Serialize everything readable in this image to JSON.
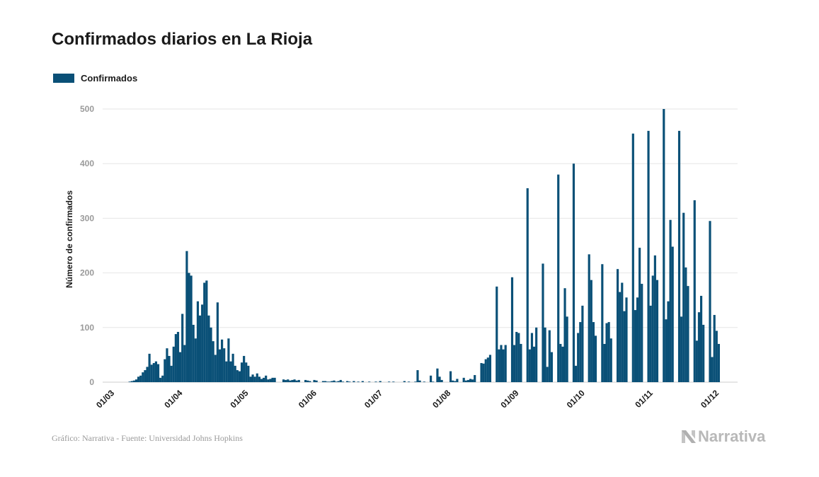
{
  "chart_data": {
    "type": "bar",
    "title": "Confirmados diarios en La Rioja",
    "ylabel": "Número de confirmados",
    "xlabel": "",
    "ylim": [
      0,
      500
    ],
    "yticks": [
      0,
      100,
      200,
      300,
      400,
      500
    ],
    "x_start": "2020-02-29",
    "x_end": "2020-11-30",
    "xticks": [
      "01/03",
      "01/04",
      "01/05",
      "01/06",
      "01/07",
      "01/08",
      "01/09",
      "01/10",
      "01/11",
      "01/12"
    ],
    "xtick_dates": [
      "2020-03-01",
      "2020-04-01",
      "2020-05-01",
      "2020-06-01",
      "2020-07-01",
      "2020-08-01",
      "2020-09-01",
      "2020-10-01",
      "2020-11-01",
      "2020-12-01"
    ],
    "grid": true,
    "legend_position": "top-left",
    "series": [
      {
        "name": "Confirmados",
        "color": "#0a5077",
        "values": [
          0,
          0,
          0,
          0,
          0,
          0,
          0,
          0,
          0,
          0,
          0,
          1,
          2,
          3,
          5,
          10,
          12,
          18,
          22,
          28,
          52,
          32,
          35,
          38,
          33,
          8,
          12,
          42,
          62,
          48,
          30,
          65,
          88,
          92,
          55,
          125,
          68,
          240,
          200,
          195,
          105,
          80,
          148,
          122,
          142,
          182,
          186,
          122,
          100,
          75,
          50,
          146,
          60,
          78,
          62,
          38,
          80,
          38,
          52,
          30,
          22,
          20,
          36,
          48,
          36,
          30,
          10,
          14,
          10,
          16,
          10,
          6,
          8,
          12,
          5,
          6,
          8,
          8,
          0,
          0,
          0,
          5,
          4,
          5,
          3,
          4,
          5,
          3,
          4,
          0,
          0,
          4,
          3,
          2,
          0,
          4,
          3,
          0,
          0,
          2,
          2,
          1,
          1,
          2,
          3,
          1,
          2,
          4,
          1,
          0,
          2,
          1,
          0,
          2,
          0,
          1,
          0,
          2,
          0,
          0,
          1,
          0,
          0,
          1,
          0,
          2,
          0,
          0,
          0,
          1,
          0,
          1,
          0,
          0,
          0,
          0,
          2,
          0,
          1,
          0,
          0,
          1,
          22,
          3,
          0,
          1,
          0,
          0,
          12,
          1,
          0,
          25,
          10,
          4,
          0,
          0,
          0,
          20,
          3,
          2,
          6,
          0,
          0,
          8,
          3,
          4,
          6,
          5,
          13,
          0,
          0,
          35,
          34,
          42,
          45,
          50,
          0,
          0,
          175,
          60,
          68,
          60,
          68,
          0,
          0,
          192,
          68,
          92,
          90,
          70,
          0,
          0,
          355,
          60,
          90,
          65,
          100,
          0,
          0,
          217,
          100,
          28,
          95,
          55,
          0,
          0,
          380,
          70,
          65,
          172,
          120,
          0,
          0,
          400,
          30,
          90,
          110,
          140,
          0,
          0,
          234,
          187,
          110,
          85,
          0,
          0,
          216,
          70,
          108,
          110,
          80,
          0,
          0,
          207,
          165,
          182,
          130,
          155,
          0,
          0,
          455,
          132,
          155,
          246,
          180,
          0,
          0,
          460,
          140,
          195,
          232,
          187,
          0,
          0,
          500,
          115,
          148,
          297,
          248,
          0,
          0,
          460,
          120,
          310,
          210,
          176,
          0,
          0,
          333,
          76,
          128,
          158,
          105,
          0,
          0,
          295,
          46,
          123,
          94,
          70,
          0
        ]
      }
    ]
  },
  "footer": {
    "source": "Gráfico: Narrativa - Fuente: Universidad Johns Hopkins",
    "brand": "Narrativa"
  },
  "colors": {
    "bar": "#0a5077",
    "grid": "#e6e6e6",
    "axis_text": "#9a9a9a",
    "brand": "#b8b8b8"
  }
}
